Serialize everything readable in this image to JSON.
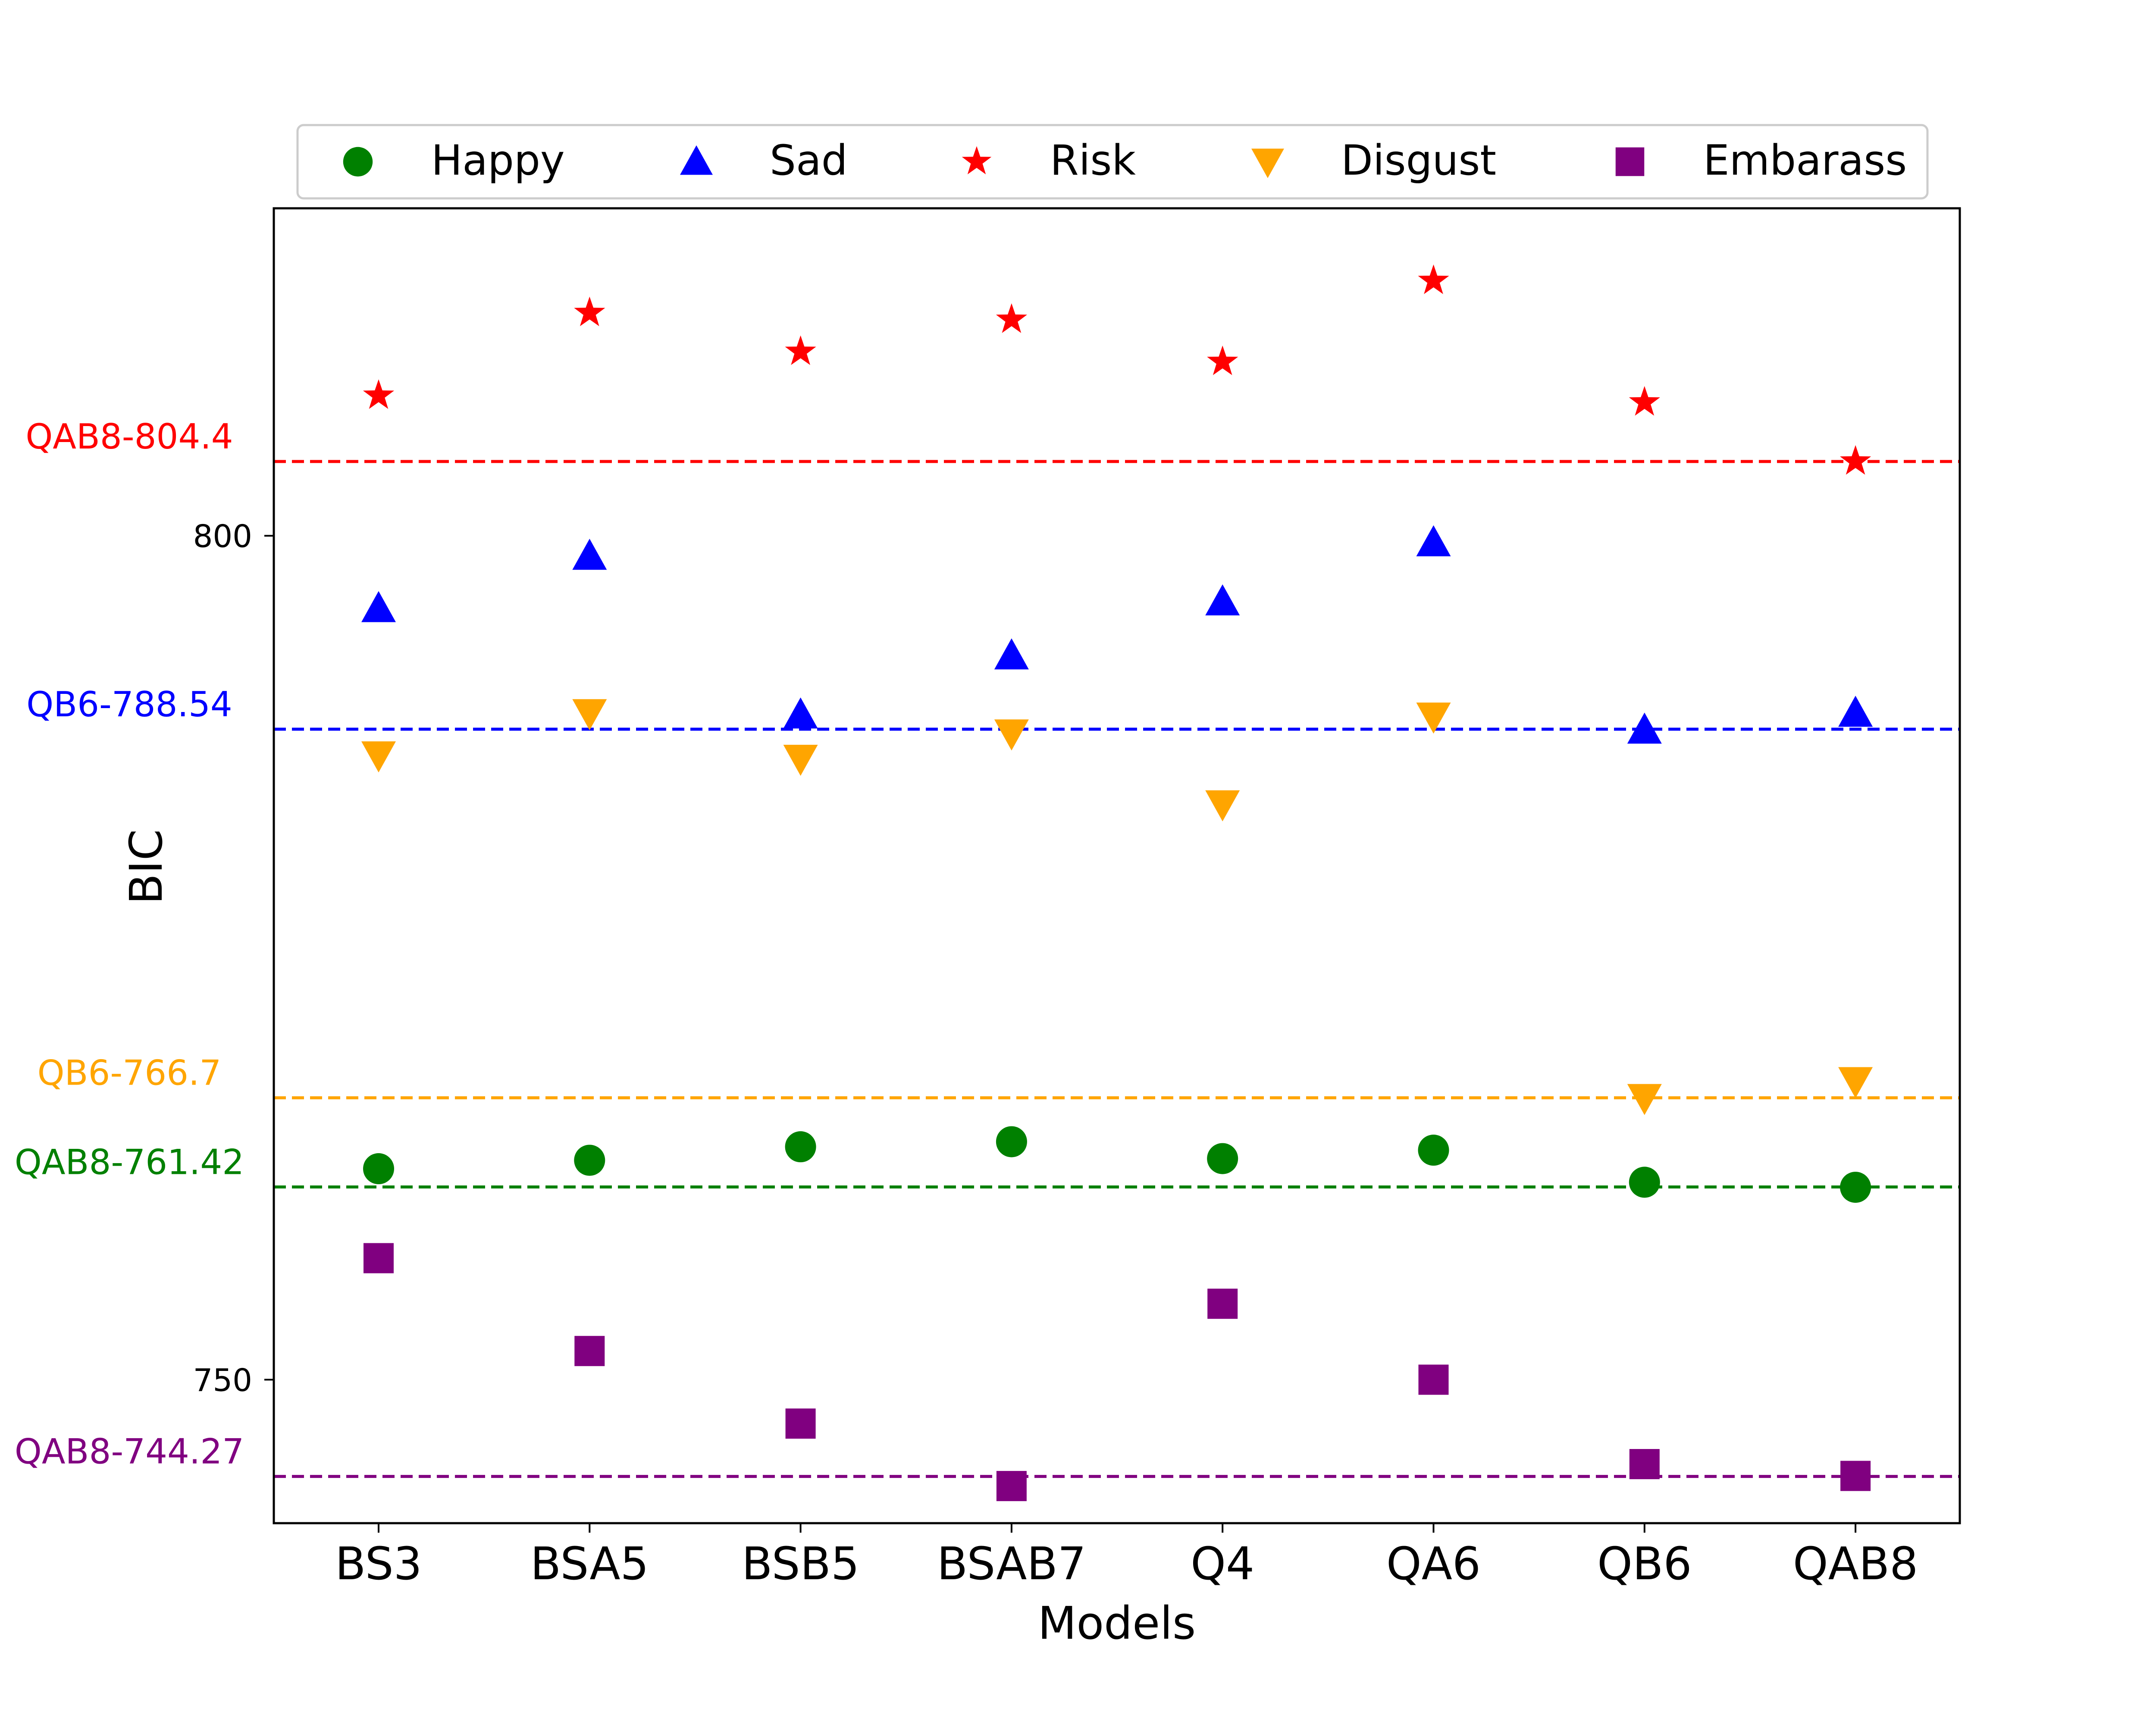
{
  "chart_data": {
    "type": "scatter",
    "categories": [
      "BS3",
      "BSA5",
      "BSB5",
      "BSAB7",
      "Q4",
      "QA6",
      "QB6",
      "QAB8"
    ],
    "xlabel": "Models",
    "ylabel": "BIC",
    "ylim": [
      741.5,
      819.4
    ],
    "yticks": [
      750,
      800
    ],
    "grid": false,
    "legend_position": "top-center",
    "series": [
      {
        "name": "Happy",
        "marker": "circle",
        "color": "#008000",
        "values": [
          762.5,
          763.0,
          763.8,
          764.1,
          763.1,
          763.6,
          761.7,
          761.4
        ]
      },
      {
        "name": "Sad",
        "marker": "triangle-up",
        "color": "#0000ff",
        "values": [
          795.7,
          798.8,
          789.4,
          792.9,
          796.1,
          799.6,
          788.5,
          789.5
        ]
      },
      {
        "name": "Risk",
        "marker": "star",
        "color": "#ff0000",
        "values": [
          808.3,
          813.2,
          810.9,
          812.8,
          810.3,
          815.1,
          807.9,
          804.4
        ]
      },
      {
        "name": "Disgust",
        "marker": "triangle-down",
        "color": "#ffa500",
        "values": [
          787.0,
          789.5,
          786.8,
          788.3,
          784.1,
          789.3,
          766.7,
          767.7
        ]
      },
      {
        "name": "Embarass",
        "marker": "square",
        "color": "#800080",
        "values": [
          757.2,
          751.7,
          747.4,
          743.7,
          754.5,
          750.0,
          745.0,
          744.3
        ]
      }
    ],
    "reference_lines": [
      {
        "label": "QAB8-804.4",
        "value": 804.4,
        "color": "#ff0000"
      },
      {
        "label": "QB6-788.54",
        "value": 788.54,
        "color": "#0000ff"
      },
      {
        "label": "QB6-766.7",
        "value": 766.7,
        "color": "#ffa500"
      },
      {
        "label": "QAB8-761.42",
        "value": 761.42,
        "color": "#008000"
      },
      {
        "label": "QAB8-744.27",
        "value": 744.27,
        "color": "#800080"
      }
    ]
  }
}
